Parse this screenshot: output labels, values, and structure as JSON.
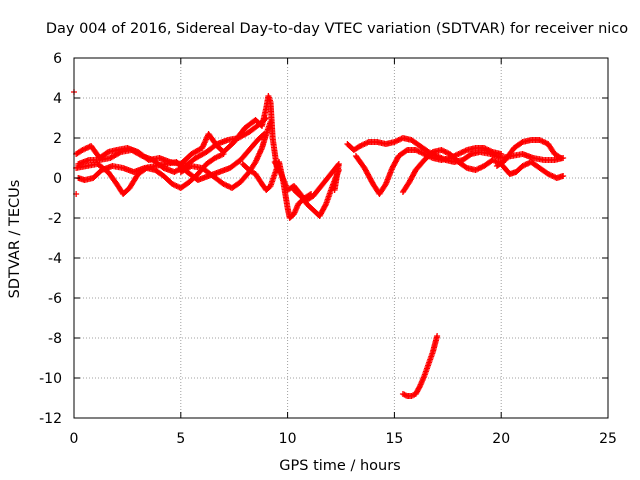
{
  "chart_data": {
    "type": "scatter",
    "title": "Day 004 of 2016, Sidereal Day-to-day VTEC variation (SDTVAR) for receiver nico",
    "xlabel": "GPS time / hours",
    "ylabel": "SDTVAR / TECUs",
    "xlim": [
      0,
      25
    ],
    "ylim": [
      -12,
      6
    ],
    "xticks": [
      0,
      5,
      10,
      15,
      20,
      25
    ],
    "yticks": [
      -12,
      -10,
      -8,
      -6,
      -4,
      -2,
      0,
      2,
      4,
      6
    ],
    "grid": true,
    "marker": "plus",
    "color": "#ff0000",
    "series": [
      {
        "name": "track-1",
        "points": [
          [
            0.1,
            1.2
          ],
          [
            0.4,
            1.4
          ],
          [
            0.8,
            1.6
          ],
          [
            1.2,
            1.0
          ],
          [
            1.6,
            1.3
          ],
          [
            2.0,
            1.4
          ],
          [
            2.5,
            1.5
          ],
          [
            3.0,
            1.3
          ],
          [
            3.5,
            0.9
          ],
          [
            4.0,
            1.0
          ],
          [
            4.5,
            0.8
          ],
          [
            5.0,
            0.7
          ],
          [
            5.5,
            1.2
          ],
          [
            6.0,
            1.5
          ],
          [
            6.3,
            2.2
          ],
          [
            6.7,
            1.6
          ],
          [
            7.0,
            1.3
          ],
          [
            7.5,
            1.8
          ],
          [
            8.0,
            2.5
          ],
          [
            8.5,
            2.9
          ],
          [
            8.8,
            2.6
          ],
          [
            9.0,
            3.5
          ],
          [
            9.1,
            4.1
          ],
          [
            9.2,
            3.8
          ],
          [
            9.3,
            2.0
          ],
          [
            9.5,
            0.5
          ]
        ]
      },
      {
        "name": "track-2",
        "points": [
          [
            0.2,
            0.7
          ],
          [
            0.7,
            0.9
          ],
          [
            1.2,
            0.9
          ],
          [
            1.7,
            1.0
          ],
          [
            2.2,
            1.3
          ],
          [
            2.7,
            1.4
          ],
          [
            3.2,
            1.1
          ],
          [
            3.7,
            0.9
          ],
          [
            4.2,
            0.5
          ],
          [
            4.7,
            0.3
          ],
          [
            5.2,
            0.6
          ],
          [
            5.7,
            1.0
          ],
          [
            6.2,
            1.3
          ],
          [
            6.7,
            1.7
          ],
          [
            7.2,
            1.9
          ],
          [
            7.7,
            2.0
          ],
          [
            8.2,
            2.3
          ],
          [
            8.7,
            2.7
          ],
          [
            9.0,
            3.0
          ]
        ]
      },
      {
        "name": "track-3",
        "points": [
          [
            0.1,
            0.5
          ],
          [
            0.6,
            0.6
          ],
          [
            1.1,
            0.7
          ],
          [
            1.6,
            0.3
          ],
          [
            2.0,
            -0.3
          ],
          [
            2.3,
            -0.8
          ],
          [
            2.6,
            -0.5
          ],
          [
            3.0,
            0.2
          ],
          [
            3.4,
            0.5
          ],
          [
            3.8,
            0.4
          ],
          [
            4.2,
            0.1
          ],
          [
            4.6,
            -0.3
          ],
          [
            5.0,
            -0.5
          ],
          [
            5.4,
            -0.2
          ],
          [
            5.8,
            0.2
          ],
          [
            6.2,
            0.7
          ],
          [
            6.6,
            1.0
          ],
          [
            7.0,
            1.2
          ]
        ]
      },
      {
        "name": "track-4",
        "points": [
          [
            0.2,
            0.0
          ],
          [
            0.5,
            -0.1
          ],
          [
            0.9,
            0.0
          ],
          [
            1.3,
            0.4
          ],
          [
            1.8,
            0.6
          ],
          [
            2.3,
            0.5
          ],
          [
            2.8,
            0.3
          ],
          [
            3.3,
            0.5
          ],
          [
            3.8,
            0.6
          ],
          [
            4.3,
            0.7
          ],
          [
            4.8,
            0.8
          ],
          [
            5.3,
            0.3
          ],
          [
            5.8,
            -0.1
          ],
          [
            6.3,
            0.1
          ],
          [
            6.8,
            0.3
          ],
          [
            7.3,
            0.5
          ],
          [
            7.8,
            0.9
          ],
          [
            8.2,
            1.4
          ],
          [
            8.6,
            1.9
          ],
          [
            8.9,
            2.2
          ]
        ]
      },
      {
        "name": "track-5",
        "points": [
          [
            5.0,
            0.3
          ],
          [
            5.5,
            0.6
          ],
          [
            6.0,
            0.5
          ],
          [
            6.5,
            0.1
          ],
          [
            7.0,
            -0.3
          ],
          [
            7.4,
            -0.5
          ],
          [
            7.8,
            -0.2
          ],
          [
            8.2,
            0.3
          ],
          [
            8.5,
            0.8
          ],
          [
            8.8,
            1.5
          ],
          [
            9.0,
            2.2
          ],
          [
            9.2,
            2.8
          ]
        ]
      },
      {
        "name": "track-6",
        "points": [
          [
            7.9,
            0.7
          ],
          [
            8.2,
            0.4
          ],
          [
            8.5,
            0.2
          ],
          [
            8.8,
            -0.3
          ],
          [
            9.0,
            -0.6
          ],
          [
            9.2,
            -0.4
          ],
          [
            9.4,
            0.2
          ],
          [
            9.6,
            0.8
          ],
          [
            9.8,
            -0.2
          ],
          [
            10.0,
            -1.5
          ],
          [
            10.1,
            -2.0
          ],
          [
            10.3,
            -1.8
          ],
          [
            10.5,
            -1.3
          ],
          [
            10.8,
            -1.0
          ],
          [
            11.1,
            -0.8
          ]
        ]
      },
      {
        "name": "track-7",
        "points": [
          [
            9.4,
            0.8
          ],
          [
            9.7,
            0.2
          ],
          [
            10.0,
            -0.6
          ],
          [
            10.3,
            -0.4
          ],
          [
            10.6,
            -0.8
          ],
          [
            10.9,
            -1.3
          ],
          [
            11.2,
            -1.6
          ],
          [
            11.5,
            -1.9
          ],
          [
            11.8,
            -1.3
          ],
          [
            12.1,
            -0.4
          ],
          [
            12.4,
            0.4
          ]
        ]
      },
      {
        "name": "track-8",
        "points": [
          [
            10.3,
            -0.6
          ],
          [
            10.6,
            -0.9
          ],
          [
            10.9,
            -1.1
          ],
          [
            11.2,
            -0.9
          ],
          [
            11.5,
            -0.5
          ],
          [
            11.8,
            -0.1
          ],
          [
            12.1,
            0.3
          ],
          [
            12.4,
            0.7
          ],
          [
            12.2,
            -0.6
          ]
        ]
      },
      {
        "name": "track-9",
        "points": [
          [
            12.8,
            1.7
          ],
          [
            13.1,
            1.4
          ],
          [
            13.4,
            1.6
          ],
          [
            13.8,
            1.8
          ],
          [
            14.2,
            1.8
          ],
          [
            14.6,
            1.7
          ],
          [
            15.0,
            1.8
          ],
          [
            15.4,
            2.0
          ],
          [
            15.8,
            1.9
          ],
          [
            16.2,
            1.6
          ],
          [
            16.6,
            1.3
          ],
          [
            17.0,
            1.1
          ],
          [
            17.4,
            0.9
          ],
          [
            17.8,
            0.8
          ],
          [
            18.2,
            0.9
          ],
          [
            18.6,
            1.2
          ],
          [
            19.0,
            1.3
          ],
          [
            19.5,
            1.2
          ],
          [
            20.0,
            1.0
          ],
          [
            20.5,
            1.1
          ],
          [
            21.0,
            1.2
          ],
          [
            21.5,
            1.0
          ],
          [
            22.0,
            0.9
          ],
          [
            22.5,
            0.9
          ],
          [
            22.9,
            1.0
          ]
        ]
      },
      {
        "name": "track-10",
        "points": [
          [
            13.2,
            1.1
          ],
          [
            13.6,
            0.5
          ],
          [
            14.0,
            -0.3
          ],
          [
            14.3,
            -0.8
          ],
          [
            14.6,
            -0.3
          ],
          [
            14.9,
            0.5
          ],
          [
            15.2,
            1.1
          ],
          [
            15.6,
            1.4
          ],
          [
            16.0,
            1.4
          ],
          [
            16.4,
            1.2
          ],
          [
            16.8,
            1.0
          ],
          [
            17.2,
            0.9
          ],
          [
            17.6,
            1.0
          ],
          [
            18.0,
            1.2
          ],
          [
            18.4,
            1.4
          ],
          [
            18.8,
            1.5
          ],
          [
            19.2,
            1.5
          ],
          [
            19.6,
            1.3
          ],
          [
            20.0,
            1.2
          ]
        ]
      },
      {
        "name": "track-11",
        "points": [
          [
            15.4,
            -0.7
          ],
          [
            15.7,
            -0.2
          ],
          [
            16.0,
            0.4
          ],
          [
            16.4,
            0.9
          ],
          [
            16.8,
            1.3
          ],
          [
            17.2,
            1.4
          ],
          [
            17.6,
            1.2
          ],
          [
            18.0,
            0.8
          ],
          [
            18.4,
            0.5
          ],
          [
            18.8,
            0.4
          ],
          [
            19.2,
            0.6
          ],
          [
            19.6,
            0.9
          ],
          [
            20.0,
            0.7
          ],
          [
            20.4,
            0.2
          ],
          [
            20.7,
            0.3
          ],
          [
            21.0,
            0.6
          ],
          [
            21.4,
            0.8
          ],
          [
            21.8,
            0.5
          ],
          [
            22.2,
            0.2
          ],
          [
            22.6,
            0.0
          ],
          [
            22.9,
            0.1
          ]
        ]
      },
      {
        "name": "track-12",
        "points": [
          [
            19.8,
            0.6
          ],
          [
            20.2,
            0.9
          ],
          [
            20.6,
            1.5
          ],
          [
            21.0,
            1.8
          ],
          [
            21.4,
            1.9
          ],
          [
            21.8,
            1.9
          ],
          [
            22.2,
            1.7
          ],
          [
            22.5,
            1.2
          ],
          [
            22.8,
            1.0
          ]
        ]
      },
      {
        "name": "track-13",
        "points": [
          [
            0.0,
            4.3
          ],
          [
            0.1,
            -0.8
          ]
        ]
      },
      {
        "name": "track-14",
        "points": [
          [
            15.4,
            -10.8
          ],
          [
            15.6,
            -10.9
          ],
          [
            15.8,
            -10.9
          ],
          [
            16.0,
            -10.8
          ],
          [
            16.2,
            -10.4
          ],
          [
            16.4,
            -9.9
          ],
          [
            16.6,
            -9.3
          ],
          [
            16.8,
            -8.7
          ],
          [
            17.0,
            -7.9
          ]
        ]
      }
    ]
  }
}
